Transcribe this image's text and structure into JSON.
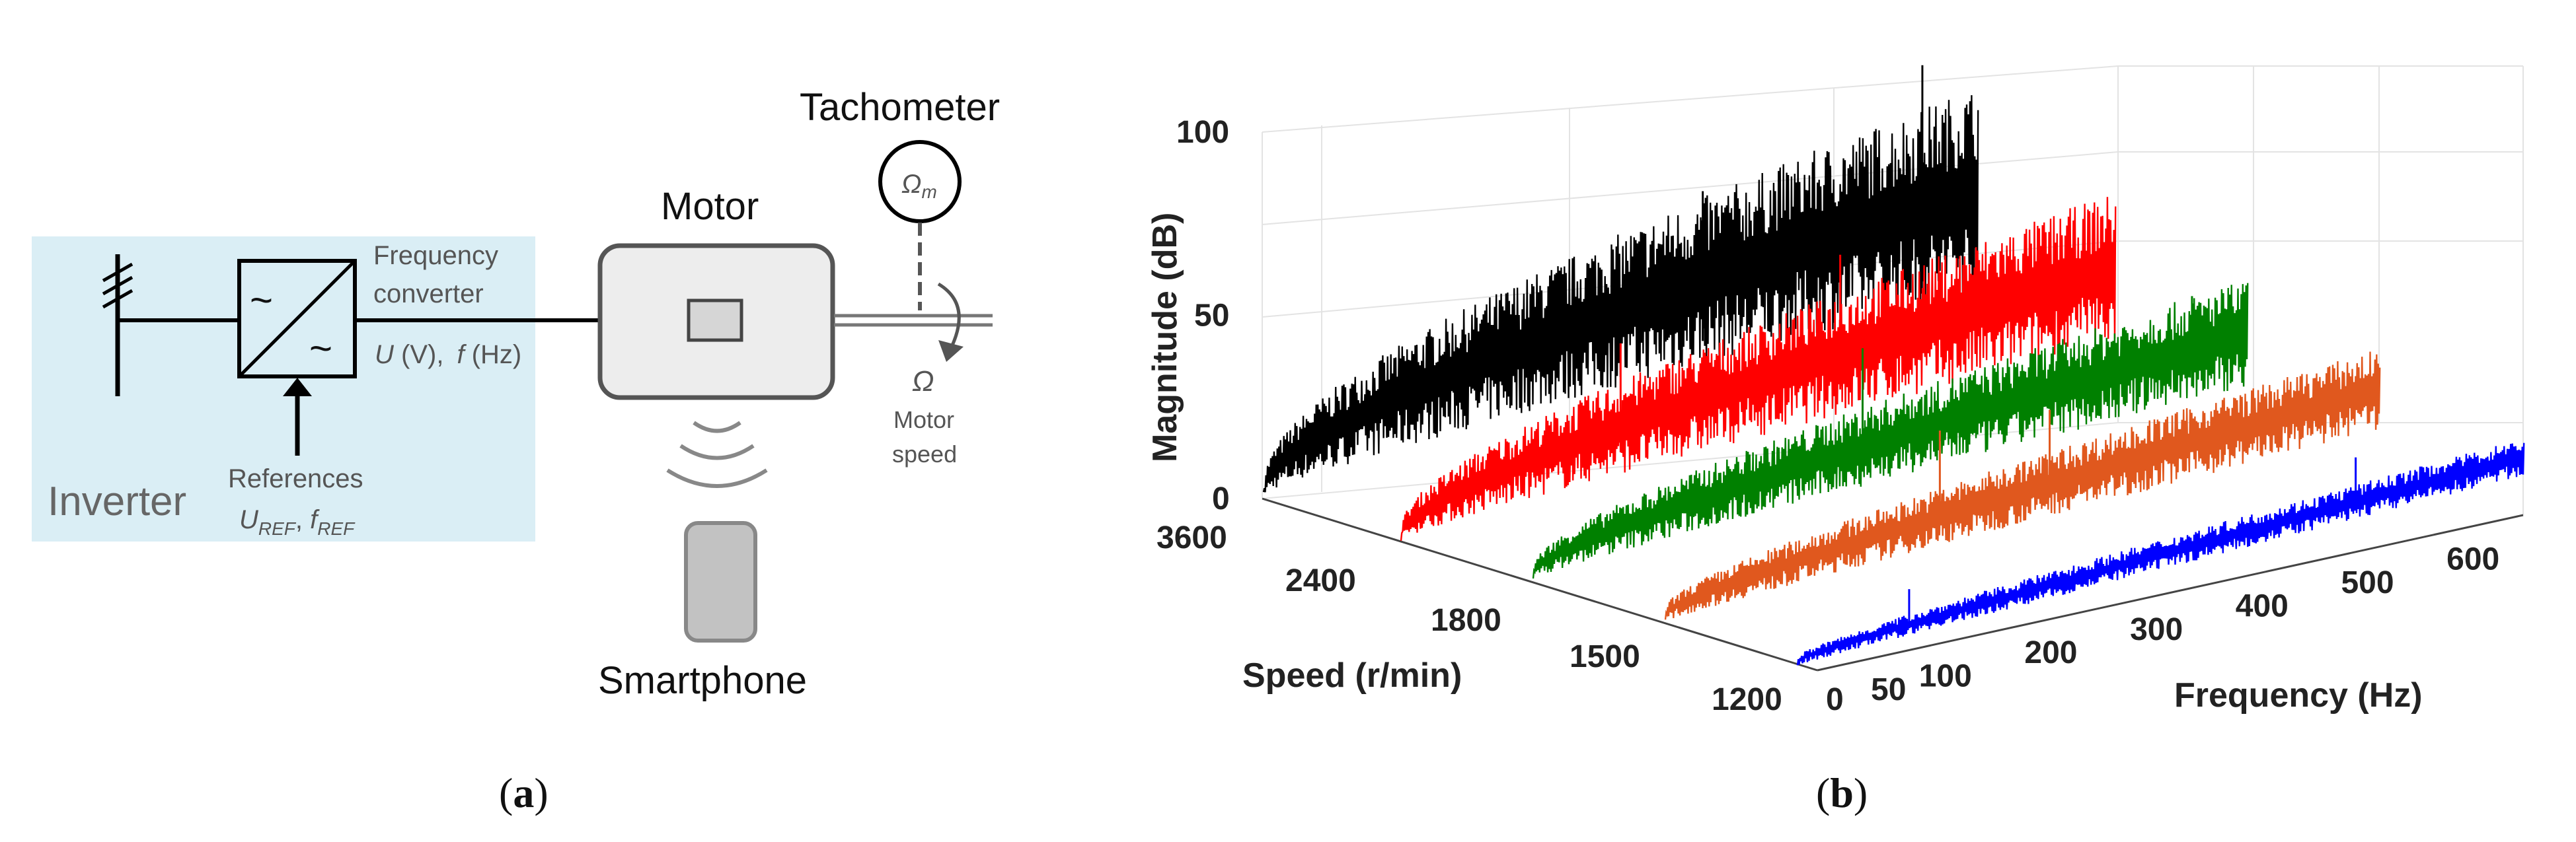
{
  "panel_a": {
    "inverter_label": "Inverter",
    "freq_converter_line1": "Frequency",
    "freq_converter_line2": "converter",
    "conv_symbol_top": "~",
    "conv_symbol_bottom": "~",
    "output_u_sym": "U",
    "output_u_unit": " (V),",
    "output_f_sym": "f",
    "output_f_unit": " (Hz)",
    "references_label": "References",
    "ref_u": "U",
    "ref_u_sub": "REF",
    "ref_sep": ", ",
    "ref_f": "f",
    "ref_f_sub": "REF",
    "motor_label": "Motor",
    "tachometer_label": "Tachometer",
    "tach_symbol": "Ω",
    "tach_sub": "m",
    "speed_symbol": "Ω",
    "speed_line1": "Motor",
    "speed_line2": "speed",
    "smartphone_label": "Smartphone",
    "caption_open": "(",
    "caption_letter": "a",
    "caption_close": ")"
  },
  "panel_b": {
    "caption_open": "(",
    "caption_letter": "b",
    "caption_close": ")"
  },
  "chart_data": {
    "type": "waterfall",
    "zlabel": "Magnitude (dB)",
    "ylabel": "Speed (r/min)",
    "xlabel": "Frequency (Hz)",
    "z_ticks": [
      "100",
      "50",
      "0"
    ],
    "z_tick_values": [
      100,
      50,
      0
    ],
    "zlim": [
      0,
      100
    ],
    "speed_ticks": [
      "3600",
      "2400",
      "1800",
      "1500",
      "1200"
    ],
    "freq_ticks": [
      "0",
      "50",
      "100",
      "200",
      "300",
      "400",
      "500",
      "600"
    ],
    "freq_tick_values": [
      0,
      50,
      100,
      200,
      300,
      400,
      500,
      600
    ],
    "xlim": [
      0,
      650
    ],
    "grid": true,
    "series": [
      {
        "name": "3600 r/min",
        "color": "#000000",
        "start_db": 5,
        "end_db": 78,
        "peaks": [
          {
            "freq": 600,
            "db": 98
          },
          {
            "freq": 400,
            "db": 72
          }
        ]
      },
      {
        "name": "2400 r/min",
        "color": "#ff0000",
        "start_db": 5,
        "end_db": 60,
        "peaks": [
          {
            "freq": 400,
            "db": 68
          },
          {
            "freq": 200,
            "db": 55
          }
        ]
      },
      {
        "name": "1800 r/min",
        "color": "#008000",
        "start_db": 5,
        "end_db": 45,
        "peaks": [
          {
            "freq": 300,
            "db": 60
          },
          {
            "freq": 600,
            "db": 48
          }
        ]
      },
      {
        "name": "1500 r/min",
        "color": "#e0581e",
        "start_db": 6,
        "end_db": 36,
        "peaks": [
          {
            "freq": 250,
            "db": 52
          },
          {
            "freq": 350,
            "db": 49
          }
        ]
      },
      {
        "name": "1200 r/min",
        "color": "#0000ff",
        "start_db": 4,
        "end_db": 18,
        "peaks": [
          {
            "freq": 500,
            "db": 30
          },
          {
            "freq": 100,
            "db": 22
          }
        ]
      }
    ]
  }
}
